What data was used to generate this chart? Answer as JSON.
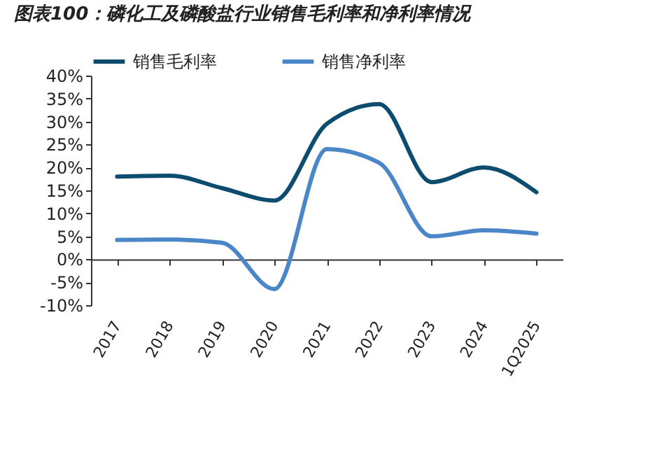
{
  "chart_data": {
    "type": "line",
    "title": "图表100：磷化工及磷酸盐行业销售毛利率和净利率情况",
    "categories": [
      "2017",
      "2018",
      "2019",
      "2020",
      "2021",
      "2022",
      "2023",
      "2024",
      "1Q2025"
    ],
    "series": [
      {
        "name": "销售毛利率",
        "color": "#0d4c6e",
        "values": [
          18.0,
          18.2,
          15.5,
          12.8,
          29.5,
          33.8,
          16.8,
          20.0,
          14.6
        ]
      },
      {
        "name": "销售净利率",
        "color": "#4a86c8",
        "values": [
          4.2,
          4.3,
          3.6,
          -6.5,
          24.0,
          21.0,
          5.0,
          6.3,
          5.6
        ]
      }
    ],
    "ylim": [
      -10,
      40
    ],
    "yticks": [
      {
        "value": -10,
        "label": "-10%"
      },
      {
        "value": -5,
        "label": "-5%"
      },
      {
        "value": 0,
        "label": "0%"
      },
      {
        "value": 5,
        "label": "5%"
      },
      {
        "value": 10,
        "label": "10%"
      },
      {
        "value": 15,
        "label": "15%"
      },
      {
        "value": 20,
        "label": "20%"
      },
      {
        "value": 25,
        "label": "25%"
      },
      {
        "value": 30,
        "label": "30%"
      },
      {
        "value": 35,
        "label": "35%"
      },
      {
        "value": 40,
        "label": "40%"
      }
    ],
    "legend": "top",
    "marker": "none",
    "line_style": "solid"
  }
}
